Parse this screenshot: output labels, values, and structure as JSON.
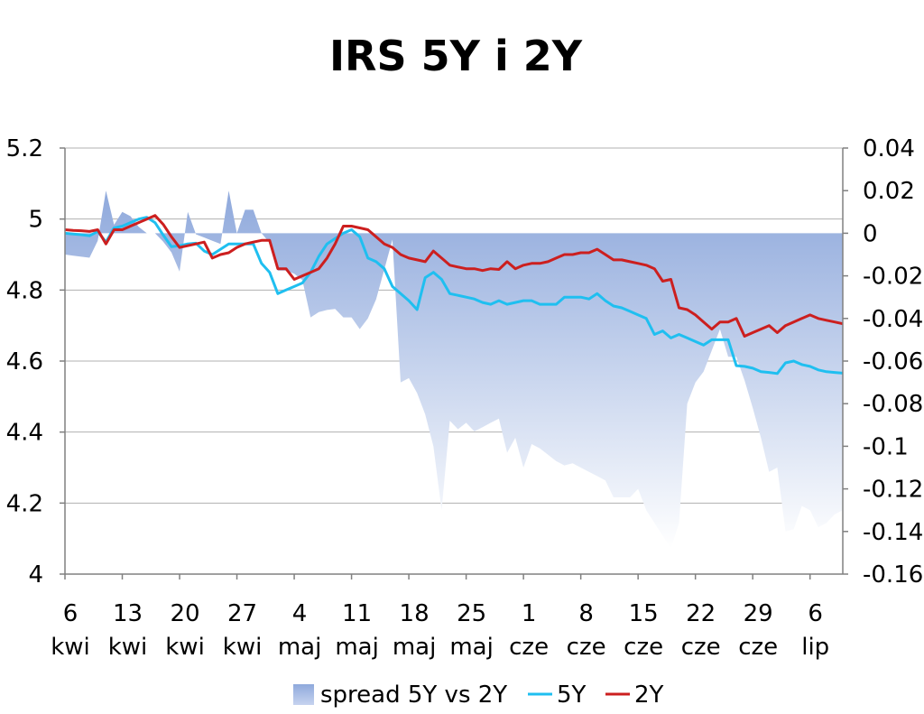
{
  "chart_data": {
    "type": "line",
    "title": "IRS 5Y i 2Y",
    "x_tick_labels": [
      [
        "6",
        "kwi"
      ],
      [
        "13",
        "kwi"
      ],
      [
        "20",
        "kwi"
      ],
      [
        "27",
        "kwi"
      ],
      [
        "4",
        "maj"
      ],
      [
        "11",
        "maj"
      ],
      [
        "18",
        "maj"
      ],
      [
        "25",
        "maj"
      ],
      [
        "1",
        "cze"
      ],
      [
        "8",
        "cze"
      ],
      [
        "15",
        "cze"
      ],
      [
        "22",
        "cze"
      ],
      [
        "29",
        "cze"
      ],
      [
        "6",
        "lip"
      ]
    ],
    "x_range_days": [
      0,
      95
    ],
    "y_left": {
      "ylim": [
        4,
        5.2
      ],
      "ticks": [
        "4",
        "4.2",
        "4.4",
        "4.6",
        "4.8",
        "5",
        "5.2"
      ]
    },
    "y_right": {
      "ylim": [
        -0.16,
        0.04
      ],
      "ticks": [
        "-0.16",
        "-0.14",
        "-0.12",
        "-0.1",
        "-0.08",
        "-0.06",
        "-0.04",
        "-0.02",
        "0",
        "0.02",
        "0.04"
      ]
    },
    "grid": "horizontal",
    "legend_position": "bottom",
    "series": [
      {
        "name": "spread 5Y vs 2Y",
        "type": "area",
        "axis": "right",
        "color_top": "#8fa9dc",
        "color_bottom": "#ffffff",
        "x": [
          0,
          1,
          2,
          3,
          4,
          5,
          6,
          7,
          8,
          9,
          10,
          11,
          12,
          13,
          14,
          15,
          16,
          17,
          18,
          19,
          20,
          21,
          22,
          23,
          24,
          25,
          26,
          27,
          28,
          29,
          30,
          31,
          32,
          33,
          34,
          35,
          36,
          37,
          38,
          39,
          40,
          41,
          42,
          43,
          44,
          45,
          46,
          47,
          48,
          49,
          50,
          51,
          52,
          53,
          54,
          55,
          56,
          57,
          58,
          59,
          60,
          61,
          62,
          63,
          64,
          65,
          66,
          67,
          68,
          69,
          70,
          71,
          72,
          73,
          74,
          75,
          76,
          77,
          78,
          79,
          80,
          81,
          82,
          83,
          84,
          85,
          86,
          87,
          88,
          89,
          90,
          91,
          92,
          93,
          94,
          95
        ],
        "values": [
          -0.01,
          -0.0105,
          -0.011,
          -0.0115,
          -0.0035,
          0.02,
          0.004,
          0.01,
          0.008,
          0.003,
          0.0,
          0.0,
          -0.004,
          -0.009,
          -0.018,
          0.01,
          -0.0005,
          -0.002,
          -0.0035,
          -0.005,
          0.02,
          0.0,
          0.011,
          0.011,
          0.0,
          -0.0045,
          -0.0175,
          -0.0175,
          -0.019,
          -0.022,
          -0.0395,
          -0.037,
          -0.036,
          -0.0355,
          -0.0395,
          -0.0395,
          -0.045,
          -0.04,
          -0.031,
          -0.017,
          -0.003,
          -0.07,
          -0.068,
          -0.075,
          -0.085,
          -0.1,
          -0.13,
          -0.088,
          -0.092,
          -0.089,
          -0.093,
          -0.091,
          -0.089,
          -0.087,
          -0.103,
          -0.096,
          -0.11,
          -0.099,
          -0.101,
          -0.104,
          -0.107,
          -0.109,
          -0.108,
          -0.11,
          -0.112,
          -0.114,
          -0.116,
          -0.124,
          -0.124,
          -0.124,
          -0.12,
          -0.13,
          -0.136,
          -0.142,
          -0.148,
          -0.136,
          -0.08,
          -0.07,
          -0.065,
          -0.055,
          -0.045,
          -0.058,
          -0.058,
          -0.069,
          -0.082,
          -0.096,
          -0.112,
          -0.11,
          -0.14,
          -0.139,
          -0.128,
          -0.13,
          -0.138,
          -0.136,
          -0.132,
          -0.13
        ]
      },
      {
        "name": "5Y",
        "type": "line",
        "axis": "left",
        "color": "#1fbff0",
        "x": [
          0,
          1,
          2,
          3,
          4,
          5,
          6,
          7,
          8,
          9,
          10,
          11,
          12,
          13,
          14,
          15,
          16,
          17,
          18,
          19,
          20,
          21,
          22,
          23,
          24,
          25,
          26,
          27,
          28,
          29,
          30,
          31,
          32,
          33,
          34,
          35,
          36,
          37,
          38,
          39,
          40,
          41,
          42,
          43,
          44,
          45,
          46,
          47,
          48,
          49,
          50,
          51,
          52,
          53,
          54,
          55,
          56,
          57,
          58,
          59,
          60,
          61,
          62,
          63,
          64,
          65,
          66,
          67,
          68,
          69,
          70,
          71,
          72,
          73,
          74,
          75,
          76,
          77,
          78,
          79,
          80,
          81,
          82,
          83,
          84,
          85,
          86,
          87,
          88,
          89,
          90,
          91,
          92,
          93,
          94,
          95
        ],
        "values": [
          4.96,
          4.958,
          4.956,
          4.953,
          4.965,
          4.935,
          4.975,
          4.98,
          4.99,
          5.0,
          5.005,
          4.99,
          4.955,
          4.922,
          4.925,
          4.93,
          4.932,
          4.91,
          4.9,
          4.915,
          4.93,
          4.93,
          4.93,
          4.93,
          4.875,
          4.85,
          4.79,
          4.8,
          4.81,
          4.82,
          4.85,
          4.895,
          4.93,
          4.945,
          4.96,
          4.97,
          4.95,
          4.89,
          4.88,
          4.86,
          4.81,
          4.79,
          4.77,
          4.745,
          4.835,
          4.85,
          4.83,
          4.79,
          4.785,
          4.78,
          4.775,
          4.765,
          4.76,
          4.77,
          4.76,
          4.765,
          4.77,
          4.77,
          4.76,
          4.76,
          4.76,
          4.78,
          4.78,
          4.78,
          4.775,
          4.79,
          4.77,
          4.755,
          4.75,
          4.74,
          4.73,
          4.72,
          4.675,
          4.685,
          4.665,
          4.675,
          4.665,
          4.655,
          4.645,
          4.66,
          4.66,
          4.66,
          4.587,
          4.585,
          4.58,
          4.57,
          4.568,
          4.565,
          4.595,
          4.6,
          4.59,
          4.585,
          4.575,
          4.57,
          4.568,
          4.566
        ]
      },
      {
        "name": "2Y",
        "type": "line",
        "axis": "left",
        "color": "#cc1f1f",
        "x": [
          0,
          1,
          2,
          3,
          4,
          5,
          6,
          7,
          8,
          9,
          10,
          11,
          12,
          13,
          14,
          15,
          16,
          17,
          18,
          19,
          20,
          21,
          22,
          23,
          24,
          25,
          26,
          27,
          28,
          29,
          30,
          31,
          32,
          33,
          34,
          35,
          36,
          37,
          38,
          39,
          40,
          41,
          42,
          43,
          44,
          45,
          46,
          47,
          48,
          49,
          50,
          51,
          52,
          53,
          54,
          55,
          56,
          57,
          58,
          59,
          60,
          61,
          62,
          63,
          64,
          65,
          66,
          67,
          68,
          69,
          70,
          71,
          72,
          73,
          74,
          75,
          76,
          77,
          78,
          79,
          80,
          81,
          82,
          83,
          84,
          85,
          86,
          87,
          88,
          89,
          90,
          91,
          92,
          93,
          94,
          95
        ],
        "values": [
          4.97,
          4.968,
          4.967,
          4.965,
          4.97,
          4.93,
          4.97,
          4.97,
          4.98,
          4.99,
          5.0,
          5.01,
          4.985,
          4.95,
          4.92,
          4.925,
          4.93,
          4.935,
          4.89,
          4.9,
          4.905,
          4.92,
          4.93,
          4.935,
          4.94,
          4.94,
          4.86,
          4.86,
          4.83,
          4.84,
          4.85,
          4.86,
          4.89,
          4.93,
          4.98,
          4.98,
          4.975,
          4.97,
          4.95,
          4.93,
          4.92,
          4.9,
          4.89,
          4.885,
          4.88,
          4.91,
          4.89,
          4.87,
          4.865,
          4.86,
          4.86,
          4.855,
          4.86,
          4.858,
          4.88,
          4.86,
          4.87,
          4.875,
          4.875,
          4.88,
          4.89,
          4.9,
          4.9,
          4.905,
          4.905,
          4.915,
          4.9,
          4.885,
          4.885,
          4.88,
          4.875,
          4.87,
          4.86,
          4.825,
          4.83,
          4.75,
          4.745,
          4.73,
          4.71,
          4.69,
          4.71,
          4.71,
          4.72,
          4.67,
          4.68,
          4.69,
          4.7,
          4.68,
          4.7,
          4.71,
          4.72,
          4.73,
          4.72,
          4.715,
          4.71,
          4.705
        ]
      }
    ]
  }
}
